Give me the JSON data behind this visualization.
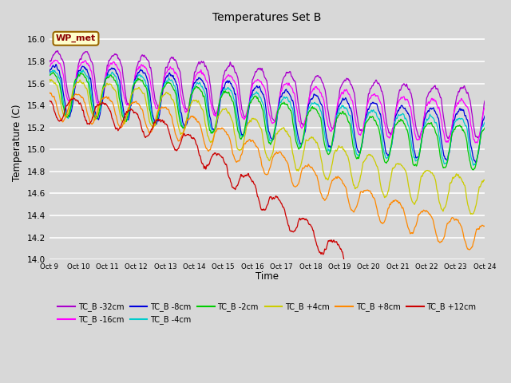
{
  "title": "Temperatures Set B",
  "xlabel": "Time",
  "ylabel": "Temperature (C)",
  "ylim": [
    14.0,
    16.12
  ],
  "xlim": [
    0,
    360
  ],
  "bg_color": "#d8d8d8",
  "series": [
    {
      "label": "TC_B -32cm",
      "color": "#aa00cc",
      "base_start": 15.78,
      "base_end": 15.45,
      "osc_amp": 0.22,
      "osc_phase": 0.0,
      "drop_start": 0,
      "drop_mag": 0.0,
      "noise_scale": 0.025
    },
    {
      "label": "TC_B -16cm",
      "color": "#ff00ff",
      "base_start": 15.72,
      "base_end": 15.35,
      "osc_amp": 0.18,
      "osc_phase": 0.3,
      "drop_start": 0,
      "drop_mag": 0.0,
      "noise_scale": 0.022
    },
    {
      "label": "TC_B -8cm",
      "color": "#0000dd",
      "base_start": 15.65,
      "base_end": 15.25,
      "osc_amp": 0.22,
      "osc_phase": 0.5,
      "drop_start": 0,
      "drop_mag": 0.0,
      "noise_scale": 0.025
    },
    {
      "label": "TC_B -4cm",
      "color": "#00cccc",
      "base_start": 15.62,
      "base_end": 15.18,
      "osc_amp": 0.2,
      "osc_phase": 0.7,
      "drop_start": 0,
      "drop_mag": 0.0,
      "noise_scale": 0.022
    },
    {
      "label": "TC_B -2cm",
      "color": "#00cc00",
      "base_start": 15.6,
      "base_end": 15.12,
      "osc_amp": 0.19,
      "osc_phase": 0.9,
      "drop_start": 0,
      "drop_mag": 0.0,
      "noise_scale": 0.02
    },
    {
      "label": "TC_B +4cm",
      "color": "#cccc00",
      "base_start": 15.55,
      "base_end": 14.9,
      "osc_amp": 0.16,
      "osc_phase": 1.2,
      "drop_start": 96,
      "drop_mag": 0.25,
      "noise_scale": 0.02
    },
    {
      "label": "TC_B +8cm",
      "color": "#ff8800",
      "base_start": 15.45,
      "base_end": 14.7,
      "osc_amp": 0.12,
      "osc_phase": 1.8,
      "drop_start": 96,
      "drop_mag": 0.45,
      "noise_scale": 0.018
    },
    {
      "label": "TC_B +12cm",
      "color": "#cc0000",
      "base_start": 15.42,
      "base_end": 14.2,
      "osc_amp": 0.1,
      "osc_phase": 2.5,
      "drop_start": 96,
      "drop_mag": 0.9,
      "noise_scale": 0.022
    }
  ],
  "xtick_labels": [
    "Oct 9",
    "Oct 10",
    "Oct 11",
    "Oct 12",
    "Oct 13",
    "Oct 14",
    "Oct 15",
    "Oct 16",
    "Oct 17",
    "Oct 18",
    "Oct 19",
    "Oct 20",
    "Oct 21",
    "Oct 22",
    "Oct 23",
    "Oct 24"
  ],
  "xtick_positions": [
    0,
    24,
    48,
    72,
    96,
    120,
    144,
    168,
    192,
    216,
    240,
    264,
    288,
    312,
    336,
    360
  ],
  "ytick_values": [
    14.0,
    14.2,
    14.4,
    14.6,
    14.8,
    15.0,
    15.2,
    15.4,
    15.6,
    15.8,
    16.0
  ],
  "wp_met_text": "WP_met",
  "wp_met_color": "#8B0000",
  "wp_met_bg": "#ffffcc",
  "wp_met_edge": "#996600"
}
